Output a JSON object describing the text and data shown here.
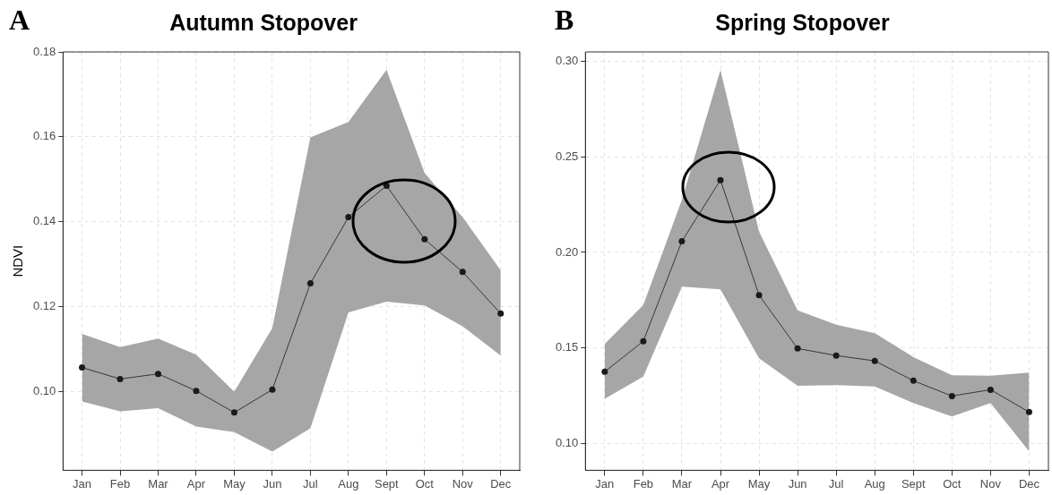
{
  "chart_data": [
    {
      "type": "line",
      "title": "Autumn Stopover",
      "ylabel": "NDVI",
      "annotations": [
        "A"
      ],
      "categories": [
        "Jan",
        "Feb",
        "Mar",
        "Apr",
        "May",
        "Jun",
        "Jul",
        "Aug",
        "Sept",
        "Oct",
        "Nov",
        "Dec"
      ],
      "series": [
        {
          "color": "#1a1a1a",
          "values": [
            0.1057,
            0.103,
            0.1042,
            0.1002,
            0.0951,
            0.1005,
            0.1255,
            0.1411,
            0.1485,
            0.1359,
            0.1282,
            0.1184
          ],
          "lower": [
            0.0977,
            0.0954,
            0.0961,
            0.0918,
            0.0905,
            0.0859,
            0.0914,
            0.1187,
            0.1212,
            0.1203,
            0.1154,
            0.1085
          ],
          "upper": [
            0.1136,
            0.1105,
            0.1125,
            0.1087,
            0.1,
            0.115,
            0.1599,
            0.1635,
            0.1758,
            0.1515,
            0.1411,
            0.1286
          ]
        }
      ],
      "ylim": [
        0.0815,
        0.18
      ],
      "yticks": [
        {
          "value": 0.1,
          "label": "0.10"
        },
        {
          "value": 0.12,
          "label": "0.12"
        },
        {
          "value": 0.14,
          "label": "0.14"
        },
        {
          "value": 0.16,
          "label": "0.16"
        },
        {
          "value": 0.18,
          "label": "0.18"
        }
      ],
      "grid": true,
      "legend": false,
      "marker": "circle",
      "line_style": "solid"
    },
    {
      "type": "line",
      "title": "Spring Stopover",
      "annotations": [
        "B"
      ],
      "categories": [
        "Jan",
        "Feb",
        "Mar",
        "Apr",
        "May",
        "Jun",
        "Jul",
        "Aug",
        "Sept",
        "Oct",
        "Nov",
        "Dec"
      ],
      "series": [
        {
          "color": "#1a1a1a",
          "values": [
            0.1375,
            0.1535,
            0.2058,
            0.2379,
            0.1776,
            0.1497,
            0.146,
            0.1432,
            0.1328,
            0.1248,
            0.1281,
            0.1164
          ],
          "lower": [
            0.1234,
            0.1349,
            0.1821,
            0.1807,
            0.1446,
            0.1302,
            0.1305,
            0.1298,
            0.1211,
            0.1141,
            0.1211,
            0.0958
          ],
          "upper": [
            0.1521,
            0.1724,
            0.2275,
            0.2955,
            0.2109,
            0.1696,
            0.1621,
            0.1577,
            0.1452,
            0.1357,
            0.1354,
            0.1371
          ]
        }
      ],
      "ylim": [
        0.0859,
        0.305
      ],
      "yticks": [
        {
          "value": 0.1,
          "label": "0.10"
        },
        {
          "value": 0.15,
          "label": "0.15"
        },
        {
          "value": 0.2,
          "label": "0.20"
        },
        {
          "value": 0.25,
          "label": "0.25"
        },
        {
          "value": 0.3,
          "label": "0.30"
        }
      ],
      "grid": true,
      "legend": false,
      "marker": "circle",
      "line_style": "solid"
    }
  ]
}
